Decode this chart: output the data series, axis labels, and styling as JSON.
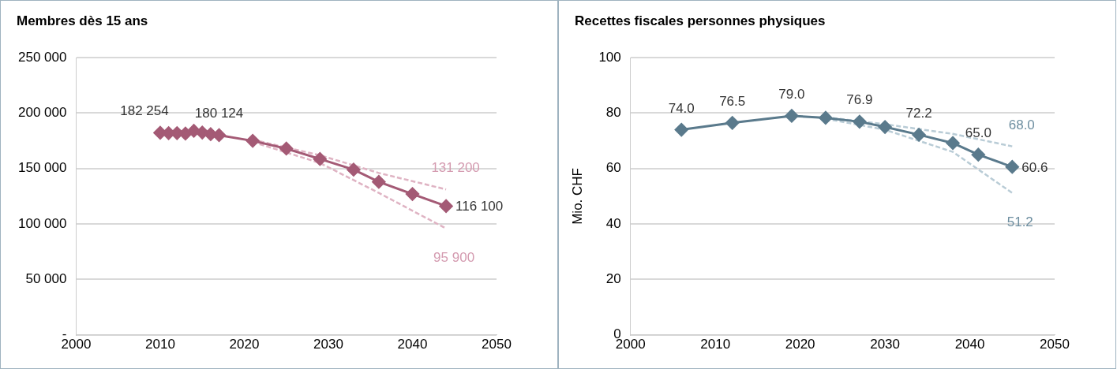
{
  "chart_data": [
    {
      "type": "line",
      "title": "Membres dès 15 ans",
      "xlim": [
        2000,
        2050
      ],
      "xticks": [
        2000,
        2010,
        2020,
        2030,
        2040,
        2050
      ],
      "ylim": [
        0,
        250000
      ],
      "yticks": [
        {
          "value": 0,
          "label": "-"
        },
        {
          "value": 50000,
          "label": "50 000"
        },
        {
          "value": 100000,
          "label": "100 000"
        },
        {
          "value": 150000,
          "label": "150 000"
        },
        {
          "value": 200000,
          "label": "200 000"
        },
        {
          "value": 250000,
          "label": "250 000"
        }
      ],
      "grid": "y",
      "legend": false,
      "series": [
        {
          "color": "#a45a75",
          "marker": "diamond",
          "line_style": "solid",
          "x": [
            2010,
            2011,
            2012,
            2013,
            2014,
            2015,
            2016,
            2017,
            2021,
            2025,
            2029,
            2033,
            2036,
            2040,
            2044
          ],
          "values": [
            182254,
            182000,
            182000,
            181500,
            184000,
            182500,
            181000,
            180124,
            175000,
            168000,
            158600,
            149000,
            138000,
            127000,
            116100
          ],
          "value_labels": [
            "182 254",
            null,
            null,
            null,
            null,
            null,
            null,
            "180 124",
            null,
            null,
            null,
            null,
            null,
            null,
            "116 100"
          ]
        },
        {
          "color": "#dfb3c3",
          "marker": "none",
          "line_style": "dashed",
          "x": [
            2021,
            2029,
            2036,
            2044
          ],
          "values": [
            176000,
            162000,
            146000,
            131200
          ],
          "value_labels": [
            null,
            null,
            null,
            "131 200"
          ]
        },
        {
          "color": "#dfb3c3",
          "marker": "none",
          "line_style": "dashed",
          "x": [
            2021,
            2029,
            2036,
            2044
          ],
          "values": [
            174000,
            155000,
            128000,
            95900
          ],
          "value_labels": [
            null,
            null,
            null,
            "95 900"
          ]
        }
      ]
    },
    {
      "type": "line",
      "title": "Recettes fiscales personnes physiques",
      "ylabel": "Mio. CHF",
      "xlim": [
        2000,
        2050
      ],
      "xticks": [
        2000,
        2010,
        2020,
        2030,
        2040,
        2050
      ],
      "ylim": [
        0,
        100
      ],
      "yticks": [
        0,
        20,
        40,
        60,
        80,
        100
      ],
      "grid": "y",
      "legend": false,
      "series": [
        {
          "color": "#5a7a8c",
          "marker": "diamond",
          "line_style": "solid",
          "x": [
            2006,
            2012,
            2019,
            2023,
            2027,
            2030,
            2034,
            2038,
            2041,
            2045
          ],
          "values": [
            74.0,
            76.5,
            79.0,
            78.3,
            76.9,
            75.0,
            72.2,
            69.2,
            65.0,
            60.6
          ],
          "value_labels": [
            "74.0",
            "76.5",
            "79.0",
            null,
            "76.9",
            null,
            "72.2",
            null,
            "65.0",
            "60.6"
          ]
        },
        {
          "color": "#b9ccd6",
          "marker": "none",
          "line_style": "dashed",
          "x": [
            2023,
            2030,
            2038,
            2045
          ],
          "values": [
            78.5,
            76.0,
            72.5,
            68.0
          ],
          "value_labels": [
            null,
            null,
            null,
            "68.0"
          ]
        },
        {
          "color": "#b9ccd6",
          "marker": "none",
          "line_style": "dashed",
          "x": [
            2023,
            2030,
            2038,
            2045
          ],
          "values": [
            78.0,
            74.0,
            66.0,
            51.2
          ],
          "value_labels": [
            null,
            null,
            null,
            "51.2"
          ]
        }
      ]
    }
  ]
}
